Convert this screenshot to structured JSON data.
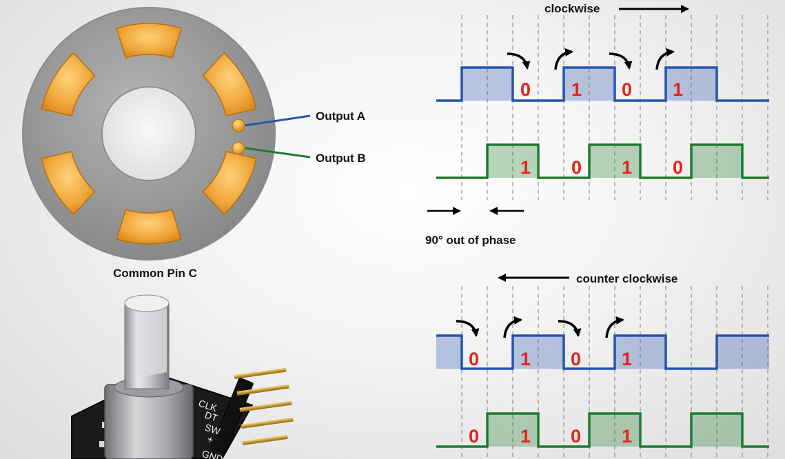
{
  "labels": {
    "output_a": "Output A",
    "output_b": "Output B",
    "common_pin": "Common Pin C",
    "clockwise": "clockwise",
    "counter_clockwise": "counter clockwise",
    "phase": "90° out of phase"
  },
  "module_pins": [
    "CLK",
    "DT",
    "SW",
    "+",
    "GND"
  ],
  "bits": {
    "cw_a": [
      "0",
      "1",
      "0",
      "1"
    ],
    "cw_b": [
      "1",
      "0",
      "1",
      "0"
    ],
    "ccw_a": [
      "0",
      "1",
      "0",
      "1"
    ],
    "ccw_b": [
      "0",
      "1",
      "0",
      "1"
    ]
  },
  "colors": {
    "signal_a": "#2454b0",
    "signal_b": "#1f7a2e",
    "bit_digit": "#e2231a",
    "encoder_disk": "#9a9a9a",
    "contact_pad": "#f0a63a"
  }
}
